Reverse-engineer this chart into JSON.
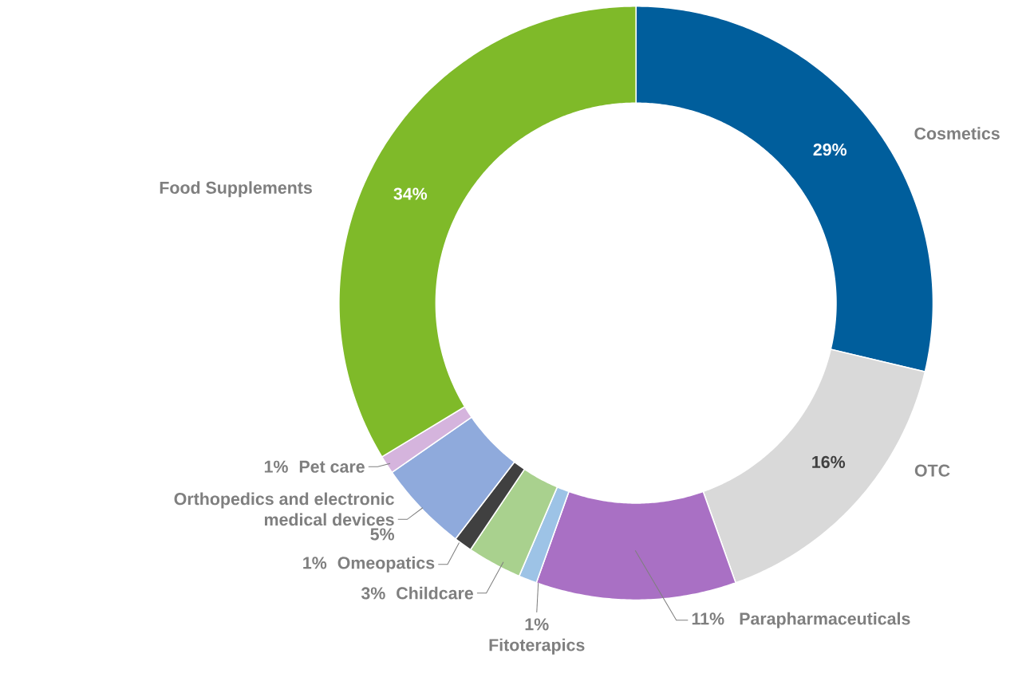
{
  "chart_data": {
    "type": "donut",
    "categories": [
      "Cosmetics",
      "OTC",
      "Parapharmaceuticals",
      "Fitoterapics",
      "Childcare",
      "Omeopatics",
      "Orthopedics and electronic medical devices",
      "Pet care",
      "Food Supplements"
    ],
    "values": [
      29,
      16,
      11,
      1,
      3,
      1,
      5,
      1,
      34
    ],
    "value_labels": [
      "29%",
      "16%",
      "11%",
      "1%",
      "3%",
      "1%",
      "5%",
      "1%",
      "34%"
    ],
    "colors": [
      "#005e9c",
      "#d9d9d9",
      "#a970c4",
      "#9dc3e6",
      "#a9d18e",
      "#404040",
      "#8faadc",
      "#d5b4dd",
      "#7fba29"
    ]
  }
}
